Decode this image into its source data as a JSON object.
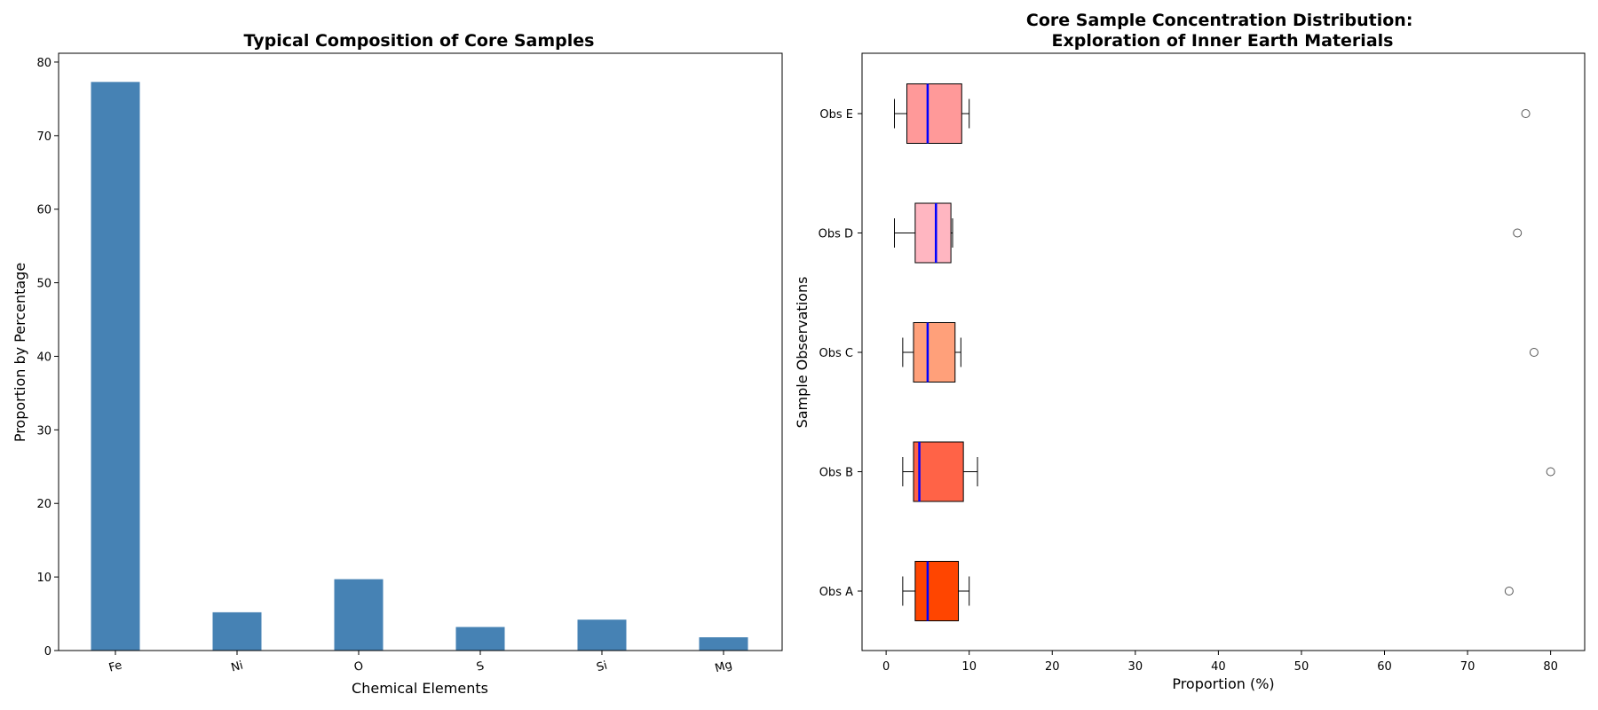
{
  "chart_data": [
    {
      "type": "bar",
      "title": "Typical Composition of Core Samples",
      "xlabel": "Chemical Elements",
      "ylabel": "Proportion by Percentage",
      "categories": [
        "Fe",
        "Ni",
        "O",
        "S",
        "Si",
        "Mg"
      ],
      "values": [
        77.3,
        5.2,
        9.7,
        3.2,
        4.2,
        1.8
      ],
      "ylim": [
        0,
        81.2
      ],
      "yticks": [
        0,
        10,
        20,
        30,
        40,
        50,
        60,
        70,
        80
      ],
      "bar_color": "#4682b4",
      "grid": false
    },
    {
      "type": "box",
      "orientation": "horizontal",
      "title_lines": [
        "Core Sample Concentration Distribution:",
        "Exploration of Inner Earth Materials"
      ],
      "xlabel": "Proportion (%)",
      "ylabel": "Sample Observations",
      "xlim": [
        -2.9,
        84.1
      ],
      "xticks": [
        0,
        10,
        20,
        30,
        40,
        50,
        60,
        70,
        80
      ],
      "categories": [
        "Obs A",
        "Obs B",
        "Obs C",
        "Obs D",
        "Obs E"
      ],
      "boxes": [
        {
          "name": "Obs A",
          "whisker_low": 2,
          "q1": 3.5,
          "median": 5,
          "q3": 8.7,
          "whisker_high": 10,
          "outliers": [
            75
          ],
          "color": "#ff4500"
        },
        {
          "name": "Obs B",
          "whisker_low": 2,
          "q1": 3.3,
          "median": 4,
          "q3": 9.3,
          "whisker_high": 11,
          "outliers": [
            80
          ],
          "color": "#ff6347"
        },
        {
          "name": "Obs C",
          "whisker_low": 2,
          "q1": 3.3,
          "median": 5,
          "q3": 8.3,
          "whisker_high": 9,
          "outliers": [
            78
          ],
          "color": "#ffa07a"
        },
        {
          "name": "Obs D",
          "whisker_low": 1,
          "q1": 3.5,
          "median": 6,
          "q3": 7.8,
          "whisker_high": 8,
          "outliers": [
            76
          ],
          "color": "#ffb6c1"
        },
        {
          "name": "Obs E",
          "whisker_low": 1,
          "q1": 2.5,
          "median": 5,
          "q3": 9.1,
          "whisker_high": 10,
          "outliers": [
            77
          ],
          "color": "#ff9999"
        }
      ],
      "median_color": "#0000ff",
      "grid": false
    }
  ]
}
